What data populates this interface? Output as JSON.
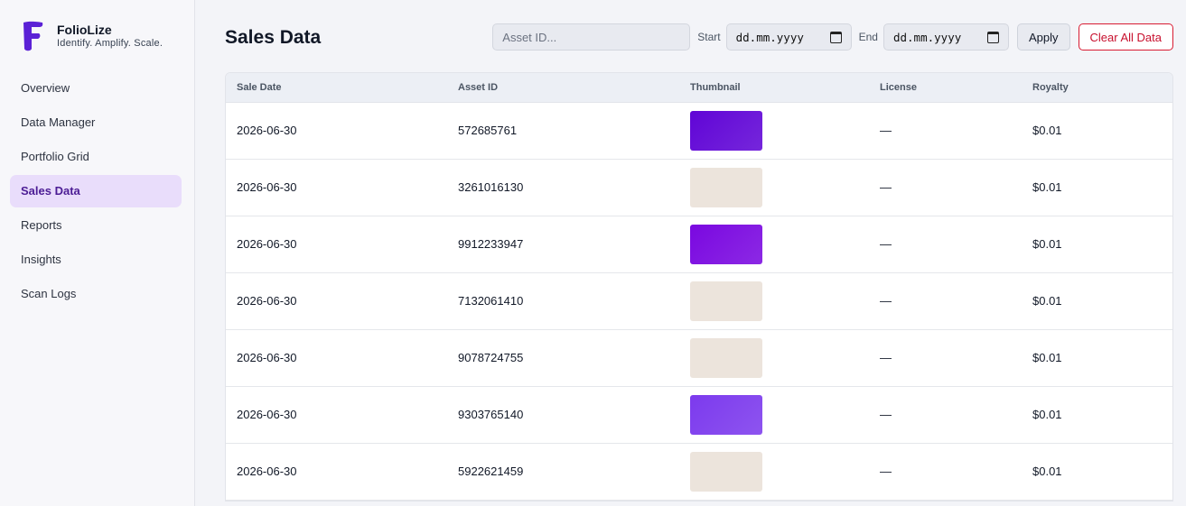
{
  "app": {
    "name": "FolioLize",
    "tagline": "Identify. Amplify. Scale.",
    "logo_letter": "F",
    "brand_color": "#5b21d6"
  },
  "sidebar": {
    "items": [
      {
        "label": "Overview",
        "active": false
      },
      {
        "label": "Data Manager",
        "active": false
      },
      {
        "label": "Portfolio Grid",
        "active": false
      },
      {
        "label": "Sales Data",
        "active": true
      },
      {
        "label": "Reports",
        "active": false
      },
      {
        "label": "Insights",
        "active": false
      },
      {
        "label": "Scan Logs",
        "active": false
      }
    ]
  },
  "header": {
    "title": "Sales Data",
    "asset_placeholder": "Asset ID...",
    "start_label": "Start",
    "start_value": "dd.mm.yyyy",
    "end_label": "End",
    "end_value": "dd.mm.yyyy",
    "apply_label": "Apply",
    "clear_label": "Clear All Data"
  },
  "table": {
    "columns": [
      "Sale Date",
      "Asset ID",
      "Thumbnail",
      "License",
      "Royalty"
    ],
    "rows": [
      {
        "date": "2026-06-30",
        "asset_id": "572685761",
        "thumb": "purple-dark",
        "license": "—",
        "royalty": "$0.01"
      },
      {
        "date": "2026-06-30",
        "asset_id": "3261016130",
        "thumb": "beige",
        "license": "—",
        "royalty": "$0.01"
      },
      {
        "date": "2026-06-30",
        "asset_id": "9912233947",
        "thumb": "purple-bright",
        "license": "—",
        "royalty": "$0.01"
      },
      {
        "date": "2026-06-30",
        "asset_id": "7132061410",
        "thumb": "beige",
        "license": "—",
        "royalty": "$0.01"
      },
      {
        "date": "2026-06-30",
        "asset_id": "9078724755",
        "thumb": "beige",
        "license": "—",
        "royalty": "$0.01"
      },
      {
        "date": "2026-06-30",
        "asset_id": "9303765140",
        "thumb": "violet",
        "license": "—",
        "royalty": "$0.01"
      },
      {
        "date": "2026-06-30",
        "asset_id": "5922621459",
        "thumb": "beige",
        "license": "—",
        "royalty": "$0.01"
      }
    ]
  },
  "thumb_colors": {
    "purple-dark": "#6005d6",
    "purple-bright": "#7a08e0",
    "violet": "#7c3aed",
    "beige": "#ece4dc"
  }
}
